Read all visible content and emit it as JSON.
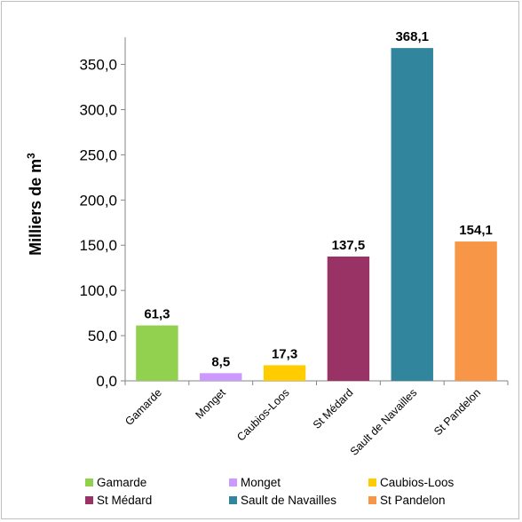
{
  "chart_data": {
    "type": "bar",
    "categories": [
      "Gamarde",
      "Monget",
      "Caubios-Loos",
      "St Médard",
      "Sault de Navailles",
      "St Pandelon"
    ],
    "values": [
      61.3,
      8.5,
      17.3,
      137.5,
      368.1,
      154.1
    ],
    "value_labels": [
      "61,3",
      "8,5",
      "17,3",
      "137,5",
      "368,1",
      "154,1"
    ],
    "colors": [
      "#92d050",
      "#cc99ff",
      "#ffcc00",
      "#993366",
      "#31859c",
      "#f79646"
    ],
    "ylabel_main": "Milliers de m",
    "ylabel_sup": "3",
    "ylim": [
      0,
      380
    ],
    "yticks": [
      0,
      50,
      100,
      150,
      200,
      250,
      300,
      350
    ],
    "ytick_labels": [
      "0,0",
      "50,0",
      "100,0",
      "150,0",
      "200,0",
      "250,0",
      "300,0",
      "350,0"
    ],
    "grid": false,
    "legend_position": "bottom"
  }
}
